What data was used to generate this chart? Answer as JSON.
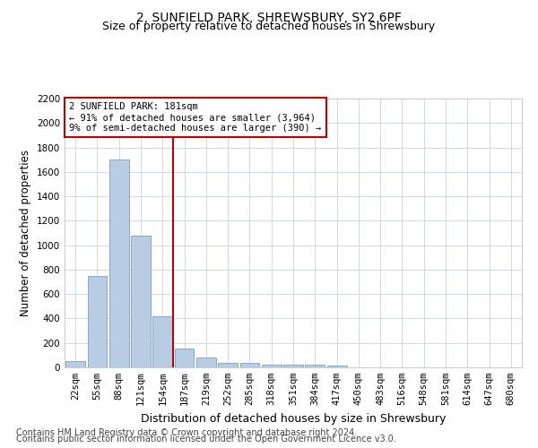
{
  "title1": "2, SUNFIELD PARK, SHREWSBURY, SY2 6PF",
  "title2": "Size of property relative to detached houses in Shrewsbury",
  "xlabel": "Distribution of detached houses by size in Shrewsbury",
  "ylabel": "Number of detached properties",
  "footer1": "Contains HM Land Registry data © Crown copyright and database right 2024.",
  "footer2": "Contains public sector information licensed under the Open Government Licence v3.0.",
  "categories": [
    "22sqm",
    "55sqm",
    "88sqm",
    "121sqm",
    "154sqm",
    "187sqm",
    "219sqm",
    "252sqm",
    "285sqm",
    "318sqm",
    "351sqm",
    "384sqm",
    "417sqm",
    "450sqm",
    "483sqm",
    "516sqm",
    "548sqm",
    "581sqm",
    "614sqm",
    "647sqm",
    "680sqm"
  ],
  "values": [
    50,
    750,
    1700,
    1075,
    420,
    155,
    80,
    38,
    35,
    25,
    20,
    20,
    15,
    0,
    0,
    0,
    0,
    0,
    0,
    0,
    0
  ],
  "bar_color": "#b8cce4",
  "bar_edge_color": "#7aa0c4",
  "vline_index": 5,
  "vline_color": "#c00000",
  "annotation_line1": "2 SUNFIELD PARK: 181sqm",
  "annotation_line2": "← 91% of detached houses are smaller (3,964)",
  "annotation_line3": "9% of semi-detached houses are larger (390) →",
  "annotation_box_color": "#c00000",
  "ylim": [
    0,
    2200
  ],
  "yticks": [
    0,
    200,
    400,
    600,
    800,
    1000,
    1200,
    1400,
    1600,
    1800,
    2000,
    2200
  ],
  "bg_color": "#ffffff",
  "grid_color": "#d0d8e8",
  "title1_fontsize": 10,
  "title2_fontsize": 9,
  "xlabel_fontsize": 9,
  "ylabel_fontsize": 8.5,
  "tick_fontsize": 7.5,
  "footer_fontsize": 7,
  "annot_fontsize": 7.5
}
